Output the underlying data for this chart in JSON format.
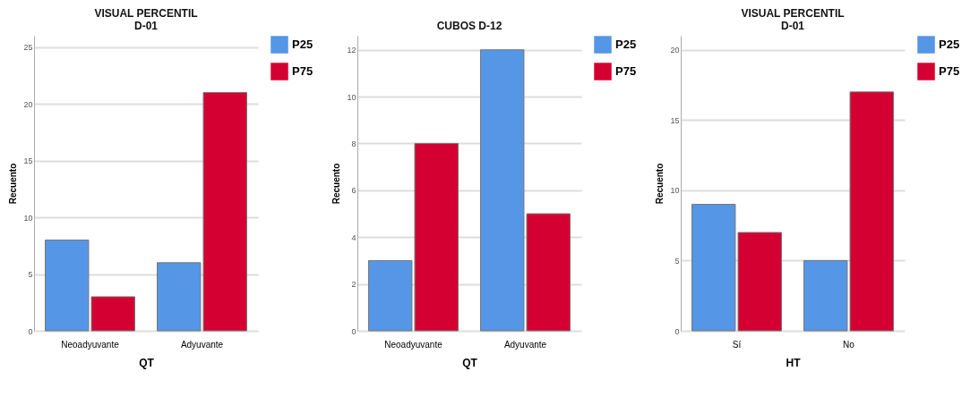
{
  "chart_data": [
    {
      "type": "bar",
      "title": "VISUAL PERCENTIL\nD-01",
      "xlabel": "QT",
      "ylabel": "Recuento",
      "categories": [
        "Neoadyuvante",
        "Adyuvante"
      ],
      "series": [
        {
          "name": "P25",
          "color": "#5596e6",
          "values": [
            8,
            6
          ]
        },
        {
          "name": "P75",
          "color": "#d50032",
          "values": [
            3,
            21
          ]
        }
      ],
      "ylim": [
        0,
        26
      ],
      "yticks": [
        0,
        5,
        10,
        15,
        20,
        25
      ],
      "grid": "y",
      "legend": "top right"
    },
    {
      "type": "bar",
      "title": "CUBOS D-12",
      "xlabel": "QT",
      "ylabel": "Recuento",
      "categories": [
        "Neoadyuvante",
        "Adyuvante"
      ],
      "series": [
        {
          "name": "P25",
          "color": "#5596e6",
          "values": [
            3,
            12
          ]
        },
        {
          "name": "P75",
          "color": "#d50032",
          "values": [
            8,
            5
          ]
        }
      ],
      "ylim": [
        0,
        12.6
      ],
      "yticks": [
        0,
        2,
        4,
        6,
        8,
        10,
        12
      ],
      "grid": "y",
      "legend": "top right"
    },
    {
      "type": "bar",
      "title": "VISUAL PERCENTIL\nD-01",
      "xlabel": "HT",
      "ylabel": "Recuento",
      "categories": [
        "Sí",
        "No"
      ],
      "series": [
        {
          "name": "P25",
          "color": "#5596e6",
          "values": [
            9,
            5
          ]
        },
        {
          "name": "P75",
          "color": "#d50032",
          "values": [
            7,
            17
          ]
        }
      ],
      "ylim": [
        0,
        21
      ],
      "yticks": [
        0,
        5,
        10,
        15,
        20
      ],
      "grid": "y",
      "legend": "top right"
    }
  ]
}
